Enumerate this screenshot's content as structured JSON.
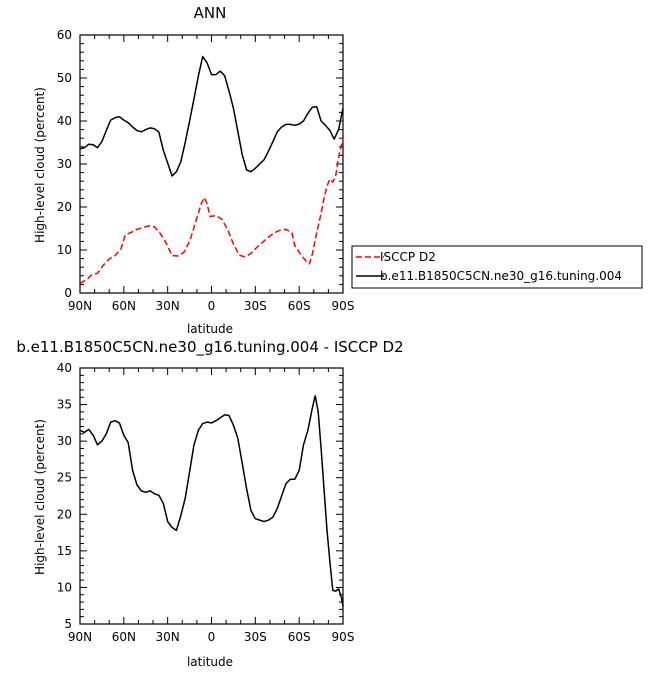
{
  "chart_data": [
    {
      "type": "line",
      "title": "ANN",
      "xlabel": "latitude",
      "ylabel": "High-level cloud (percent)",
      "xlim": [
        90,
        -90
      ],
      "ylim": [
        0,
        60
      ],
      "x_ticks": [
        {
          "v": 90,
          "label": "90N"
        },
        {
          "v": 60,
          "label": "60N"
        },
        {
          "v": 30,
          "label": "30N"
        },
        {
          "v": 0,
          "label": "0"
        },
        {
          "v": -30,
          "label": "30S"
        },
        {
          "v": -60,
          "label": "60S"
        },
        {
          "v": -90,
          "label": "90S"
        }
      ],
      "y_ticks": [
        0,
        10,
        20,
        30,
        40,
        50,
        60
      ],
      "grid": false,
      "legend_position": "right",
      "series": [
        {
          "name": "ISCCP D2",
          "color": "#ff0000",
          "dash": "dashed",
          "points": [
            [
              90,
              2.2
            ],
            [
              85,
              3.2
            ],
            [
              82,
              4.2
            ],
            [
              78,
              4.6
            ],
            [
              74,
              6.5
            ],
            [
              70,
              7.9
            ],
            [
              66,
              8.7
            ],
            [
              62,
              10.2
            ],
            [
              59,
              13.5
            ],
            [
              55,
              14.1
            ],
            [
              51,
              14.8
            ],
            [
              47,
              15.2
            ],
            [
              43,
              15.6
            ],
            [
              39,
              15.4
            ],
            [
              35,
              13.8
            ],
            [
              31,
              11.6
            ],
            [
              27,
              8.7
            ],
            [
              23,
              8.6
            ],
            [
              19,
              9.4
            ],
            [
              15,
              12.0
            ],
            [
              11,
              16.3
            ],
            [
              7,
              20.8
            ],
            [
              5,
              22.2
            ],
            [
              3,
              20.8
            ],
            [
              1,
              17.8
            ],
            [
              -3,
              18.0
            ],
            [
              -7,
              17.2
            ],
            [
              -11,
              14.8
            ],
            [
              -15,
              11.4
            ],
            [
              -19,
              8.8
            ],
            [
              -23,
              8.4
            ],
            [
              -27,
              9.2
            ],
            [
              -31,
              10.6
            ],
            [
              -35,
              11.8
            ],
            [
              -39,
              13.0
            ],
            [
              -43,
              14.0
            ],
            [
              -47,
              14.6
            ],
            [
              -51,
              14.8
            ],
            [
              -55,
              14.0
            ],
            [
              -57,
              11.0
            ],
            [
              -61,
              9.0
            ],
            [
              -65,
              7.3
            ],
            [
              -67,
              6.8
            ],
            [
              -69,
              9.0
            ],
            [
              -72,
              14.0
            ],
            [
              -75,
              18.5
            ],
            [
              -77,
              22.0
            ],
            [
              -79,
              24.8
            ],
            [
              -81,
              26.5
            ],
            [
              -83,
              25.8
            ],
            [
              -85,
              27.2
            ],
            [
              -87,
              31.5
            ],
            [
              -90,
              36.0
            ]
          ]
        },
        {
          "name": "b.e11.B1850C5CN.ne30_g16.tuning.004",
          "color": "#000000",
          "dash": "solid",
          "points": [
            [
              90,
              33.5
            ],
            [
              87,
              33.8
            ],
            [
              84,
              34.6
            ],
            [
              81,
              34.5
            ],
            [
              78,
              33.8
            ],
            [
              75,
              35.2
            ],
            [
              72,
              37.8
            ],
            [
              69,
              40.2
            ],
            [
              66,
              40.8
            ],
            [
              63,
              41.0
            ],
            [
              60,
              40.2
            ],
            [
              57,
              39.6
            ],
            [
              54,
              38.6
            ],
            [
              51,
              37.8
            ],
            [
              48,
              37.5
            ],
            [
              45,
              38.0
            ],
            [
              42,
              38.4
            ],
            [
              39,
              38.2
            ],
            [
              36,
              37.4
            ],
            [
              33,
              33.2
            ],
            [
              30,
              30.2
            ],
            [
              27,
              27.2
            ],
            [
              24,
              28.2
            ],
            [
              21,
              30.5
            ],
            [
              18,
              35.0
            ],
            [
              15,
              40.0
            ],
            [
              12,
              45.2
            ],
            [
              9,
              50.5
            ],
            [
              6,
              55.0
            ],
            [
              3,
              53.5
            ],
            [
              0,
              50.8
            ],
            [
              -3,
              50.8
            ],
            [
              -6,
              51.6
            ],
            [
              -9,
              50.5
            ],
            [
              -12,
              47.0
            ],
            [
              -15,
              43.0
            ],
            [
              -18,
              37.6
            ],
            [
              -21,
              32.2
            ],
            [
              -24,
              28.6
            ],
            [
              -27,
              28.2
            ],
            [
              -30,
              29.0
            ],
            [
              -33,
              30.0
            ],
            [
              -36,
              31.0
            ],
            [
              -39,
              33.0
            ],
            [
              -42,
              35.2
            ],
            [
              -45,
              37.5
            ],
            [
              -48,
              38.6
            ],
            [
              -51,
              39.2
            ],
            [
              -54,
              39.2
            ],
            [
              -57,
              39.0
            ],
            [
              -60,
              39.3
            ],
            [
              -63,
              40.0
            ],
            [
              -66,
              41.8
            ],
            [
              -69,
              43.2
            ],
            [
              -72,
              43.3
            ],
            [
              -75,
              40.0
            ],
            [
              -78,
              39.0
            ],
            [
              -81,
              37.8
            ],
            [
              -84,
              35.8
            ],
            [
              -87,
              38.0
            ],
            [
              -90,
              43.0
            ]
          ]
        }
      ]
    },
    {
      "type": "line",
      "title": "b.e11.B1850C5CN.ne30_g16.tuning.004 - ISCCP D2",
      "xlabel": "latitude",
      "ylabel": "High-level cloud (percent)",
      "xlim": [
        90,
        -90
      ],
      "ylim": [
        5,
        40
      ],
      "x_ticks": [
        {
          "v": 90,
          "label": "90N"
        },
        {
          "v": 60,
          "label": "60N"
        },
        {
          "v": 30,
          "label": "30N"
        },
        {
          "v": 0,
          "label": "0"
        },
        {
          "v": -30,
          "label": "30S"
        },
        {
          "v": -60,
          "label": "60S"
        },
        {
          "v": -90,
          "label": "90S"
        }
      ],
      "y_ticks": [
        5,
        10,
        15,
        20,
        25,
        30,
        35,
        40
      ],
      "grid": false,
      "series": [
        {
          "color": "#000000",
          "dash": "solid",
          "points": [
            [
              90,
              31.5
            ],
            [
              87,
              31.2
            ],
            [
              84,
              31.6
            ],
            [
              81,
              30.8
            ],
            [
              78,
              29.5
            ],
            [
              75,
              30.0
            ],
            [
              72,
              31.0
            ],
            [
              69,
              32.6
            ],
            [
              66,
              32.8
            ],
            [
              63,
              32.5
            ],
            [
              60,
              30.8
            ],
            [
              57,
              29.8
            ],
            [
              54,
              26.0
            ],
            [
              51,
              24.0
            ],
            [
              48,
              23.2
            ],
            [
              45,
              23.0
            ],
            [
              42,
              23.2
            ],
            [
              39,
              22.8
            ],
            [
              36,
              22.6
            ],
            [
              33,
              21.5
            ],
            [
              30,
              19.0
            ],
            [
              27,
              18.2
            ],
            [
              24,
              17.8
            ],
            [
              21,
              19.8
            ],
            [
              18,
              22.2
            ],
            [
              15,
              25.8
            ],
            [
              12,
              29.5
            ],
            [
              9,
              31.5
            ],
            [
              6,
              32.4
            ],
            [
              3,
              32.6
            ],
            [
              0,
              32.5
            ],
            [
              -3,
              32.8
            ],
            [
              -6,
              33.2
            ],
            [
              -9,
              33.6
            ],
            [
              -12,
              33.5
            ],
            [
              -15,
              32.2
            ],
            [
              -18,
              30.4
            ],
            [
              -21,
              27.0
            ],
            [
              -24,
              23.5
            ],
            [
              -27,
              20.5
            ],
            [
              -30,
              19.4
            ],
            [
              -33,
              19.2
            ],
            [
              -36,
              19.0
            ],
            [
              -39,
              19.2
            ],
            [
              -42,
              19.6
            ],
            [
              -45,
              20.8
            ],
            [
              -48,
              22.5
            ],
            [
              -51,
              24.2
            ],
            [
              -54,
              24.8
            ],
            [
              -57,
              24.8
            ],
            [
              -60,
              26.0
            ],
            [
              -63,
              29.5
            ],
            [
              -66,
              31.5
            ],
            [
              -69,
              34.5
            ],
            [
              -71,
              36.2
            ],
            [
              -73,
              34.0
            ],
            [
              -75,
              29.0
            ],
            [
              -77,
              23.5
            ],
            [
              -79,
              18.0
            ],
            [
              -81,
              13.5
            ],
            [
              -83,
              9.6
            ],
            [
              -85,
              9.5
            ],
            [
              -87,
              9.8
            ],
            [
              -89,
              8.6
            ],
            [
              -90,
              7.4
            ]
          ]
        }
      ]
    }
  ]
}
